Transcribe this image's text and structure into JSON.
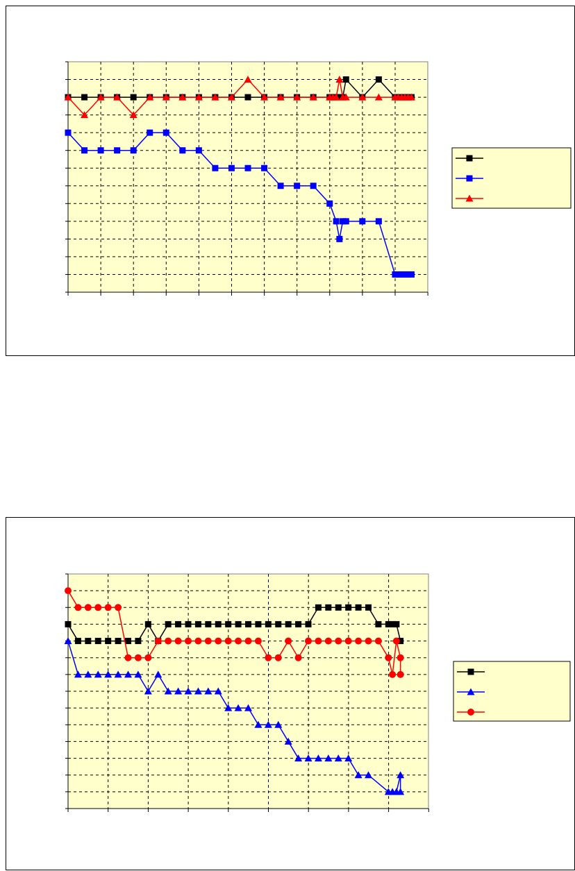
{
  "chart_data": [
    {
      "type": "line",
      "title": "",
      "xlabel": "",
      "ylabel": "",
      "grid": true,
      "legend": "right",
      "xlim": [
        0,
        22
      ],
      "ylim": [
        0,
        13
      ],
      "background": "#ffffcc",
      "series": [
        {
          "marker": "square",
          "color": "#000000",
          "points": [
            [
              0,
              11
            ],
            [
              1,
              11
            ],
            [
              2,
              11
            ],
            [
              3,
              11
            ],
            [
              4,
              11
            ],
            [
              5,
              11
            ],
            [
              6,
              11
            ],
            [
              7,
              11
            ],
            [
              8,
              11
            ],
            [
              9,
              11
            ],
            [
              10,
              11
            ],
            [
              11,
              11
            ],
            [
              12,
              11
            ],
            [
              13,
              11
            ],
            [
              14,
              11
            ],
            [
              15,
              11
            ],
            [
              16,
              11
            ],
            [
              16.2,
              11
            ],
            [
              16.4,
              11
            ],
            [
              16.6,
              11
            ],
            [
              16.8,
              11
            ],
            [
              17,
              12
            ],
            [
              18,
              11
            ],
            [
              19,
              12
            ],
            [
              20,
              11
            ],
            [
              20.2,
              11
            ],
            [
              20.4,
              11
            ],
            [
              20.6,
              11
            ],
            [
              20.8,
              11
            ],
            [
              21,
              11
            ]
          ]
        },
        {
          "marker": "square",
          "color": "#0000ff",
          "points": [
            [
              0,
              9
            ],
            [
              1,
              8
            ],
            [
              2,
              8
            ],
            [
              3,
              8
            ],
            [
              4,
              8
            ],
            [
              5,
              9
            ],
            [
              6,
              9
            ],
            [
              7,
              8
            ],
            [
              8,
              8
            ],
            [
              9,
              7
            ],
            [
              10,
              7
            ],
            [
              11,
              7
            ],
            [
              12,
              7
            ],
            [
              13,
              6
            ],
            [
              14,
              6
            ],
            [
              15,
              6
            ],
            [
              16,
              5
            ],
            [
              16.4,
              4
            ],
            [
              16.6,
              3
            ],
            [
              16.8,
              4
            ],
            [
              17,
              4
            ],
            [
              18,
              4
            ],
            [
              19,
              4
            ],
            [
              20,
              1
            ],
            [
              20.2,
              1
            ],
            [
              20.4,
              1
            ],
            [
              20.6,
              1
            ],
            [
              20.8,
              1
            ],
            [
              21,
              1
            ]
          ]
        },
        {
          "marker": "triangle",
          "color": "#ff0000",
          "points": [
            [
              0,
              11
            ],
            [
              1,
              10
            ],
            [
              2,
              11
            ],
            [
              3,
              11
            ],
            [
              4,
              10
            ],
            [
              5,
              11
            ],
            [
              6,
              11
            ],
            [
              7,
              11
            ],
            [
              8,
              11
            ],
            [
              9,
              11
            ],
            [
              10,
              11
            ],
            [
              11,
              12
            ],
            [
              12,
              11
            ],
            [
              13,
              11
            ],
            [
              14,
              11
            ],
            [
              15,
              11
            ],
            [
              16,
              11
            ],
            [
              16.2,
              11
            ],
            [
              16.4,
              11
            ],
            [
              16.6,
              12
            ],
            [
              16.8,
              11
            ],
            [
              17,
              11
            ],
            [
              18,
              11
            ],
            [
              19,
              11
            ],
            [
              20,
              11
            ],
            [
              20.2,
              11
            ],
            [
              20.4,
              11
            ],
            [
              20.6,
              11
            ],
            [
              20.8,
              11
            ],
            [
              21,
              11
            ]
          ]
        }
      ]
    },
    {
      "type": "line",
      "title": "",
      "xlabel": "",
      "ylabel": "",
      "grid": true,
      "legend": "right",
      "xlim": [
        0,
        9
      ],
      "ylim": [
        0,
        14
      ],
      "background": "#ffffcc",
      "series": [
        {
          "marker": "square",
          "color": "#000000",
          "points": [
            [
              0,
              11
            ],
            [
              0.25,
              10
            ],
            [
              0.5,
              10
            ],
            [
              0.75,
              10
            ],
            [
              1,
              10
            ],
            [
              1.25,
              10
            ],
            [
              1.5,
              10
            ],
            [
              1.75,
              10
            ],
            [
              2,
              11
            ],
            [
              2.25,
              10
            ],
            [
              2.5,
              11
            ],
            [
              2.75,
              11
            ],
            [
              3,
              11
            ],
            [
              3.25,
              11
            ],
            [
              3.5,
              11
            ],
            [
              3.75,
              11
            ],
            [
              4,
              11
            ],
            [
              4.25,
              11
            ],
            [
              4.5,
              11
            ],
            [
              4.75,
              11
            ],
            [
              5,
              11
            ],
            [
              5.25,
              11
            ],
            [
              5.5,
              11
            ],
            [
              5.75,
              11
            ],
            [
              6,
              11
            ],
            [
              6.25,
              12
            ],
            [
              6.5,
              12
            ],
            [
              6.75,
              12
            ],
            [
              7,
              12
            ],
            [
              7.25,
              12
            ],
            [
              7.5,
              12
            ],
            [
              7.75,
              11
            ],
            [
              8,
              11
            ],
            [
              8.1,
              11
            ],
            [
              8.2,
              11
            ],
            [
              8.3,
              10
            ]
          ]
        },
        {
          "marker": "triangle",
          "color": "#0000ff",
          "points": [
            [
              0,
              10
            ],
            [
              0.25,
              8
            ],
            [
              0.5,
              8
            ],
            [
              0.75,
              8
            ],
            [
              1,
              8
            ],
            [
              1.25,
              8
            ],
            [
              1.5,
              8
            ],
            [
              1.75,
              8
            ],
            [
              2,
              7
            ],
            [
              2.25,
              8
            ],
            [
              2.5,
              7
            ],
            [
              2.75,
              7
            ],
            [
              3,
              7
            ],
            [
              3.25,
              7
            ],
            [
              3.5,
              7
            ],
            [
              3.75,
              7
            ],
            [
              4,
              6
            ],
            [
              4.25,
              6
            ],
            [
              4.5,
              6
            ],
            [
              4.75,
              5
            ],
            [
              5,
              5
            ],
            [
              5.25,
              5
            ],
            [
              5.5,
              4
            ],
            [
              5.75,
              3
            ],
            [
              6,
              3
            ],
            [
              6.25,
              3
            ],
            [
              6.5,
              3
            ],
            [
              6.75,
              3
            ],
            [
              7,
              3
            ],
            [
              7.25,
              2
            ],
            [
              7.5,
              2
            ],
            [
              8,
              1
            ],
            [
              8.1,
              1
            ],
            [
              8.2,
              1
            ],
            [
              8.3,
              2
            ],
            [
              8.3,
              1
            ]
          ]
        },
        {
          "marker": "circle",
          "color": "#ff0000",
          "points": [
            [
              0,
              13
            ],
            [
              0.25,
              12
            ],
            [
              0.5,
              12
            ],
            [
              0.75,
              12
            ],
            [
              1,
              12
            ],
            [
              1.25,
              12
            ],
            [
              1.5,
              9
            ],
            [
              1.75,
              9
            ],
            [
              2,
              9
            ],
            [
              2.25,
              10
            ],
            [
              2.5,
              10
            ],
            [
              2.75,
              10
            ],
            [
              3,
              10
            ],
            [
              3.25,
              10
            ],
            [
              3.5,
              10
            ],
            [
              3.75,
              10
            ],
            [
              4,
              10
            ],
            [
              4.25,
              10
            ],
            [
              4.5,
              10
            ],
            [
              4.75,
              10
            ],
            [
              5,
              9
            ],
            [
              5.25,
              9
            ],
            [
              5.5,
              10
            ],
            [
              5.75,
              9
            ],
            [
              6,
              10
            ],
            [
              6.25,
              10
            ],
            [
              6.5,
              10
            ],
            [
              6.75,
              10
            ],
            [
              7,
              10
            ],
            [
              7.25,
              10
            ],
            [
              7.5,
              10
            ],
            [
              7.75,
              10
            ],
            [
              8,
              9
            ],
            [
              8.1,
              8
            ],
            [
              8.2,
              10
            ],
            [
              8.3,
              9
            ],
            [
              8.3,
              8
            ]
          ]
        }
      ]
    }
  ]
}
